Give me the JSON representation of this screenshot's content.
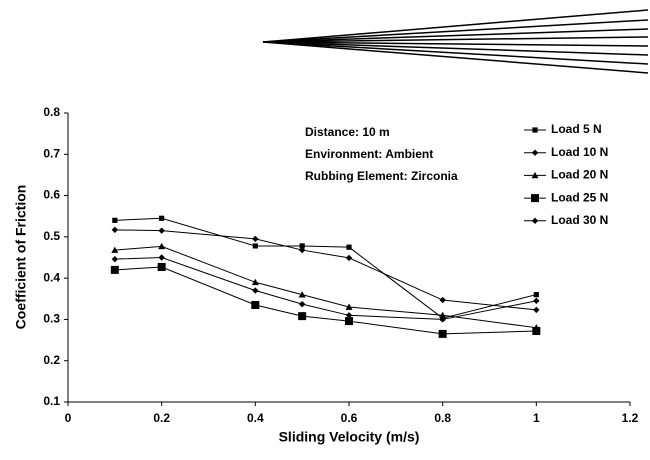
{
  "chart_data": {
    "type": "line",
    "x_label": "Sliding Velocity (m/s)",
    "y_label": "Coefficient of Friction",
    "annotations": [
      "Distance: 10 m",
      "Environment: Ambient",
      "Rubbing Element: Zirconia"
    ],
    "x": [
      0.1,
      0.2,
      0.4,
      0.5,
      0.6,
      0.8,
      1
    ],
    "series": [
      {
        "name": "Load 5 N",
        "color": "#000000",
        "marker": "square",
        "values": [
          0.54,
          0.545,
          0.478,
          0.478,
          0.475,
          0.303,
          0.36
        ]
      },
      {
        "name": "Load 10 N",
        "color": "#000000",
        "marker": "diamond",
        "values": [
          0.446,
          0.45,
          0.37,
          0.337,
          0.31,
          0.3,
          0.345
        ]
      },
      {
        "name": "Load 20 N",
        "color": "#000000",
        "marker": "triangle",
        "values": [
          0.468,
          0.477,
          0.39,
          0.36,
          0.33,
          0.31,
          0.28
        ]
      },
      {
        "name": "Load 25 N",
        "color": "#000000",
        "marker": "big-square",
        "values": [
          0.42,
          0.427,
          0.335,
          0.308,
          0.296,
          0.265,
          0.272
        ]
      },
      {
        "name": "Load 30 N",
        "color": "#000000",
        "marker": "diamond",
        "values": [
          0.517,
          0.515,
          0.495,
          0.468,
          0.449,
          0.347,
          0.323
        ]
      }
    ],
    "xlim": [
      0,
      1.2
    ],
    "xticks": [
      0,
      0.2,
      0.4,
      0.6,
      0.8,
      1,
      1.2
    ],
    "ylim": [
      0.1,
      0.8
    ],
    "yticks": [
      0.1,
      0.2,
      0.3,
      0.4,
      0.5,
      0.6,
      0.7,
      0.8
    ],
    "grid": false,
    "legend": "right"
  }
}
